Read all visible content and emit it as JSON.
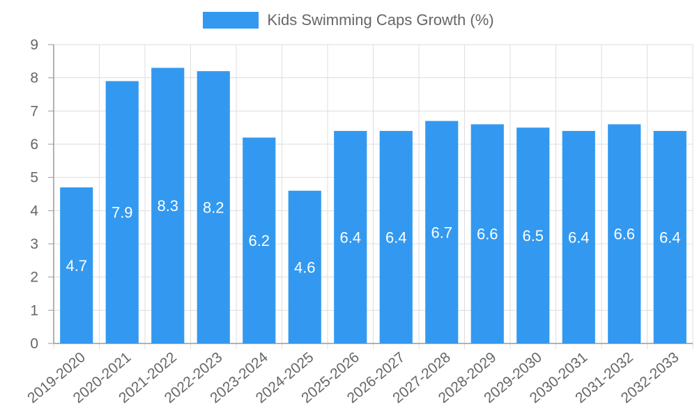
{
  "colors": {
    "bar": "#3399f0",
    "grid": "#dddddd",
    "axis": "#999999",
    "tick_text": "#666666",
    "data_label": "#ffffff"
  },
  "chart_data": {
    "type": "bar",
    "title": "",
    "xlabel": "",
    "ylabel": "",
    "legend": {
      "position": "top-center",
      "entries": [
        "Kids Swimming Caps Growth (%)"
      ]
    },
    "ylim": [
      0,
      9
    ],
    "yticks": [
      0,
      1,
      2,
      3,
      4,
      5,
      6,
      7,
      8,
      9
    ],
    "grid": true,
    "categories": [
      "2019-2020",
      "2020-2021",
      "2021-2022",
      "2022-2023",
      "2023-2024",
      "2024-2025",
      "2025-2026",
      "2026-2027",
      "2027-2028",
      "2028-2029",
      "2029-2030",
      "2030-2031",
      "2031-2032",
      "2032-2033"
    ],
    "series": [
      {
        "name": "Kids Swimming Caps Growth (%)",
        "values": [
          4.7,
          7.9,
          8.3,
          8.2,
          6.2,
          4.6,
          6.4,
          6.4,
          6.7,
          6.6,
          6.5,
          6.4,
          6.6,
          6.4
        ],
        "data_labels": [
          "4.7",
          "7.9",
          "8.3",
          "8.2",
          "6.2",
          "4.6",
          "6.4",
          "6.4",
          "6.7",
          "6.6",
          "6.5",
          "6.4",
          "6.6",
          "6.4"
        ]
      }
    ]
  }
}
